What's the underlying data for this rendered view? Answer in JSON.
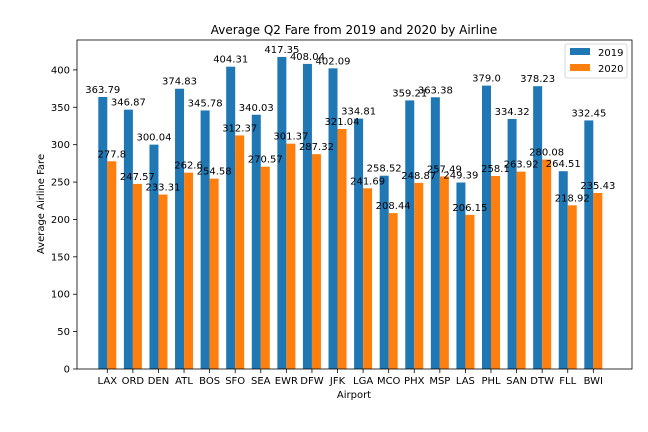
{
  "chart_data": {
    "type": "bar",
    "title": "Average Q2 Fare from 2019 and 2020 by Airline",
    "xlabel": "Airport",
    "ylabel": "Average  Airline Fare",
    "ylim": [
      0,
      440
    ],
    "yticks": [
      0,
      50,
      100,
      150,
      200,
      250,
      300,
      350,
      400
    ],
    "grid": false,
    "legend_position": "top-right",
    "categories": [
      "LAX",
      "ORD",
      "DEN",
      "ATL",
      "BOS",
      "SFO",
      "SEA",
      "EWR",
      "DFW",
      "JFK",
      "LGA",
      "MCO",
      "PHX",
      "MSP",
      "LAS",
      "PHL",
      "SAN",
      "DTW",
      "FLL",
      "BWI"
    ],
    "series": [
      {
        "name": "2019",
        "color": "#1f77b4",
        "values": [
          363.79,
          346.87,
          300.04,
          374.83,
          345.78,
          404.31,
          340.03,
          417.35,
          408.04,
          402.09,
          334.81,
          258.52,
          359.21,
          363.38,
          249.39,
          379.0,
          334.32,
          378.23,
          264.51,
          332.45
        ],
        "labels": [
          "363.79",
          "346.87",
          "300.04",
          "374.83",
          "345.78",
          "404.31",
          "340.03",
          "417.35",
          "408.04",
          "402.09",
          "334.81",
          "258.52",
          "359.21",
          "363.38",
          "249.39",
          "379.0",
          "334.32",
          "378.23",
          "264.51",
          "332.45"
        ]
      },
      {
        "name": "2020",
        "color": "#ff7f0e",
        "values": [
          277.8,
          247.57,
          233.31,
          262.6,
          254.58,
          312.37,
          270.57,
          301.37,
          287.32,
          321.04,
          241.69,
          208.44,
          248.87,
          257.49,
          206.15,
          258.1,
          263.92,
          280.08,
          218.92,
          235.43
        ],
        "labels": [
          "277.8",
          "247.57",
          "233.31",
          "262.6",
          "254.58",
          "312.37",
          "270.57",
          "301.37",
          "287.32",
          "321.04",
          "241.69",
          "208.44",
          "248.87",
          "257.49",
          "206.15",
          "258.1",
          "263.92",
          "280.08",
          "218.92",
          "235.43"
        ]
      }
    ]
  }
}
